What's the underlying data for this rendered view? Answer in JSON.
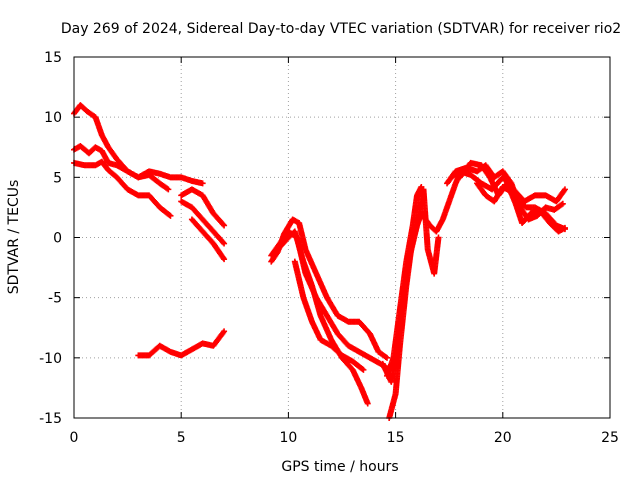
{
  "chart_data": {
    "type": "scatter",
    "title": "Day 269 of 2024, Sidereal Day-to-day VTEC variation (SDTVAR) for receiver rio2",
    "xlabel": "GPS time / hours",
    "ylabel": "SDTVAR / TECUs",
    "xlim": [
      0,
      25
    ],
    "ylim": [
      -15,
      15
    ],
    "xticks": [
      0,
      5,
      10,
      15,
      20,
      25
    ],
    "yticks": [
      -15,
      -10,
      -5,
      0,
      5,
      10,
      15
    ],
    "xtick_labels": [
      "0",
      "5",
      "10",
      "15",
      "20",
      "25"
    ],
    "ytick_labels": [
      "-15",
      "-10",
      "-5",
      "0",
      "5",
      "10",
      "15"
    ],
    "grid": true,
    "marker": "+",
    "color": "#ff0000",
    "series": [
      {
        "name": "track-1",
        "points": [
          [
            0,
            10.3
          ],
          [
            0.3,
            11
          ],
          [
            0.6,
            10.5
          ],
          [
            1,
            10
          ],
          [
            1.3,
            8.5
          ],
          [
            1.6,
            7.5
          ],
          [
            2,
            6.5
          ],
          [
            2.5,
            5.5
          ],
          [
            3,
            5
          ],
          [
            3.5,
            5.2
          ],
          [
            4,
            4.5
          ],
          [
            4.4,
            4
          ]
        ]
      },
      {
        "name": "track-2",
        "points": [
          [
            0,
            7.3
          ],
          [
            0.3,
            7.6
          ],
          [
            0.7,
            7
          ],
          [
            1,
            7.5
          ],
          [
            1.3,
            7.2
          ],
          [
            1.6,
            6.2
          ],
          [
            2,
            6
          ],
          [
            2.5,
            5.5
          ],
          [
            3,
            5
          ],
          [
            3.5,
            5.5
          ],
          [
            4,
            5.3
          ],
          [
            4.5,
            5
          ],
          [
            5,
            5
          ],
          [
            5.5,
            4.7
          ],
          [
            6,
            4.5
          ]
        ]
      },
      {
        "name": "track-3",
        "points": [
          [
            0,
            6.2
          ],
          [
            0.5,
            6
          ],
          [
            1,
            6
          ],
          [
            1.3,
            6.3
          ],
          [
            1.6,
            5.6
          ],
          [
            2,
            5
          ],
          [
            2.5,
            4
          ],
          [
            3,
            3.5
          ],
          [
            3.5,
            3.5
          ],
          [
            4,
            2.5
          ],
          [
            4.5,
            1.8
          ]
        ]
      },
      {
        "name": "track-4",
        "points": [
          [
            5,
            3.5
          ],
          [
            5.5,
            4
          ],
          [
            6,
            3.5
          ],
          [
            6.5,
            2
          ],
          [
            7,
            1
          ]
        ]
      },
      {
        "name": "track-5",
        "points": [
          [
            5,
            3
          ],
          [
            5.5,
            2.5
          ],
          [
            6,
            1.5
          ],
          [
            6.5,
            0.5
          ],
          [
            7,
            -0.5
          ]
        ]
      },
      {
        "name": "track-6",
        "points": [
          [
            5.5,
            1.5
          ],
          [
            6,
            0.5
          ],
          [
            6.5,
            -0.5
          ],
          [
            7,
            -1.8
          ]
        ]
      },
      {
        "name": "track-7",
        "points": [
          [
            3,
            -9.8
          ],
          [
            3.5,
            -9.8
          ],
          [
            4,
            -9
          ],
          [
            4.5,
            -9.5
          ],
          [
            5,
            -9.8
          ],
          [
            5.5,
            -9.3
          ],
          [
            6,
            -8.8
          ],
          [
            6.5,
            -9
          ],
          [
            7,
            -7.8
          ]
        ]
      },
      {
        "name": "track-8",
        "points": [
          [
            9.2,
            -2
          ],
          [
            9.5,
            -1.2
          ],
          [
            9.8,
            0.3
          ],
          [
            10.2,
            1.5
          ],
          [
            10.5,
            1.2
          ],
          [
            10.8,
            -1
          ],
          [
            11.3,
            -3
          ],
          [
            11.8,
            -5
          ],
          [
            12.3,
            -6.5
          ],
          [
            12.8,
            -7
          ],
          [
            13.3,
            -7
          ],
          [
            13.8,
            -8
          ],
          [
            14.2,
            -9.5
          ],
          [
            14.6,
            -10
          ]
        ]
      },
      {
        "name": "track-9",
        "points": [
          [
            9.2,
            -1.5
          ],
          [
            9.6,
            -0.5
          ],
          [
            10,
            0.5
          ],
          [
            10.4,
            0
          ],
          [
            10.8,
            -3
          ],
          [
            11.3,
            -5
          ],
          [
            11.8,
            -6.5
          ],
          [
            12.3,
            -8
          ],
          [
            12.8,
            -9
          ],
          [
            13.3,
            -9.5
          ],
          [
            13.8,
            -10
          ],
          [
            14.3,
            -10.5
          ],
          [
            14.7,
            -11
          ]
        ]
      },
      {
        "name": "track-10",
        "points": [
          [
            9.5,
            -1
          ],
          [
            10,
            0
          ],
          [
            10.3,
            0.5
          ],
          [
            10.7,
            -2
          ],
          [
            11.1,
            -4
          ],
          [
            11.5,
            -6.5
          ],
          [
            12,
            -8.5
          ],
          [
            12.5,
            -10
          ],
          [
            13,
            -11
          ],
          [
            13.4,
            -12.5
          ],
          [
            13.7,
            -13.8
          ]
        ]
      },
      {
        "name": "track-11",
        "points": [
          [
            10.3,
            -2
          ],
          [
            10.7,
            -5
          ],
          [
            11.1,
            -7
          ],
          [
            11.5,
            -8.5
          ],
          [
            12,
            -9
          ],
          [
            12.5,
            -9.8
          ],
          [
            13,
            -10.3
          ],
          [
            13.5,
            -11
          ]
        ]
      },
      {
        "name": "track-12",
        "points": [
          [
            14.4,
            -10.5
          ],
          [
            14.8,
            -12
          ],
          [
            15,
            -10
          ],
          [
            15.3,
            -6
          ],
          [
            15.6,
            -2
          ],
          [
            16,
            1
          ],
          [
            16.3,
            4
          ],
          [
            16.5,
            -1
          ],
          [
            16.8,
            -3
          ],
          [
            17,
            0
          ]
        ]
      },
      {
        "name": "track-13",
        "points": [
          [
            14.7,
            -15
          ],
          [
            15,
            -13
          ],
          [
            15.2,
            -9
          ],
          [
            15.5,
            -4
          ],
          [
            15.8,
            0
          ],
          [
            16.2,
            2
          ],
          [
            16.6,
            1
          ],
          [
            16.9,
            0.5
          ],
          [
            17.2,
            1.5
          ],
          [
            17.5,
            3
          ],
          [
            17.8,
            4.5
          ],
          [
            18,
            5.3
          ]
        ]
      },
      {
        "name": "track-14",
        "points": [
          [
            14.6,
            -11.5
          ],
          [
            14.9,
            -10
          ],
          [
            15.2,
            -6
          ],
          [
            15.5,
            -2
          ],
          [
            15.8,
            1
          ],
          [
            16,
            3.5
          ],
          [
            16.2,
            4.2
          ]
        ]
      },
      {
        "name": "track-15",
        "points": [
          [
            17.4,
            4.5
          ],
          [
            17.8,
            5.5
          ],
          [
            18.3,
            5.8
          ],
          [
            18.8,
            5.5
          ],
          [
            19.2,
            6
          ],
          [
            19.6,
            5
          ],
          [
            20,
            5.5
          ],
          [
            20.4,
            4.5
          ],
          [
            20.7,
            3
          ],
          [
            21.1,
            2.5
          ],
          [
            21.5,
            2.5
          ],
          [
            22,
            2
          ],
          [
            22.5,
            1
          ],
          [
            22.9,
            0.7
          ]
        ]
      },
      {
        "name": "track-16",
        "points": [
          [
            17.6,
            5
          ],
          [
            18,
            5.5
          ],
          [
            18.5,
            5.2
          ],
          [
            19,
            4.5
          ],
          [
            19.5,
            4
          ],
          [
            20,
            5
          ],
          [
            20.5,
            4
          ],
          [
            21,
            3
          ],
          [
            21.5,
            3.5
          ],
          [
            22,
            3.5
          ],
          [
            22.5,
            3
          ],
          [
            22.9,
            4
          ]
        ]
      },
      {
        "name": "track-17",
        "points": [
          [
            18,
            5
          ],
          [
            18.5,
            6.2
          ],
          [
            19,
            6
          ],
          [
            19.4,
            5
          ],
          [
            19.8,
            3.5
          ],
          [
            20.2,
            4.5
          ],
          [
            20.6,
            2.8
          ],
          [
            20.9,
            1.2
          ],
          [
            21.3,
            2
          ],
          [
            21.7,
            2.3
          ],
          [
            22.2,
            1.2
          ],
          [
            22.6,
            0.5
          ],
          [
            22.9,
            0.8
          ]
        ]
      },
      {
        "name": "track-18",
        "points": [
          [
            18.8,
            4.5
          ],
          [
            19.2,
            3.5
          ],
          [
            19.6,
            3
          ],
          [
            20,
            4.2
          ],
          [
            20.4,
            3.8
          ],
          [
            20.8,
            2.5
          ],
          [
            21.2,
            1.5
          ],
          [
            21.6,
            1.8
          ],
          [
            22,
            2.5
          ],
          [
            22.4,
            2.3
          ],
          [
            22.8,
            2.8
          ]
        ]
      }
    ]
  }
}
